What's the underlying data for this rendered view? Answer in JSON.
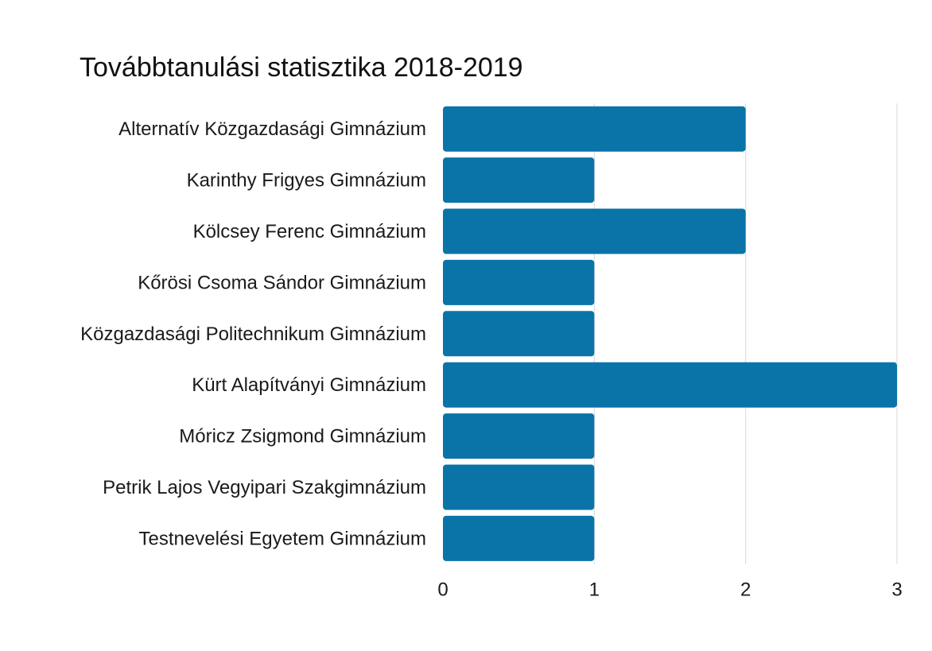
{
  "chart_data": {
    "type": "bar",
    "orientation": "horizontal",
    "title": "Továbbtanulási statisztika 2018-2019",
    "categories": [
      "Alternatív Közgazdasági Gimnázium",
      "Karinthy Frigyes Gimnázium",
      "Kölcsey Ferenc Gimnázium",
      "Kőrösi Csoma Sándor Gimnázium",
      "Közgazdasági Politechnikum Gimnázium",
      "Kürt Alapítványi Gimnázium",
      "Móricz Zsigmond Gimnázium",
      "Petrik Lajos Vegyipari Szakgimnázium",
      "Testnevelési Egyetem Gimnázium"
    ],
    "values": [
      2,
      1,
      2,
      1,
      1,
      3,
      1,
      1,
      1
    ],
    "xlim": [
      0,
      3
    ],
    "xticks": [
      "0",
      "1",
      "2",
      "3"
    ],
    "xlabel": "",
    "ylabel": "",
    "grid": "vertical",
    "legend": "none",
    "bar_color": "#0a74a8"
  }
}
